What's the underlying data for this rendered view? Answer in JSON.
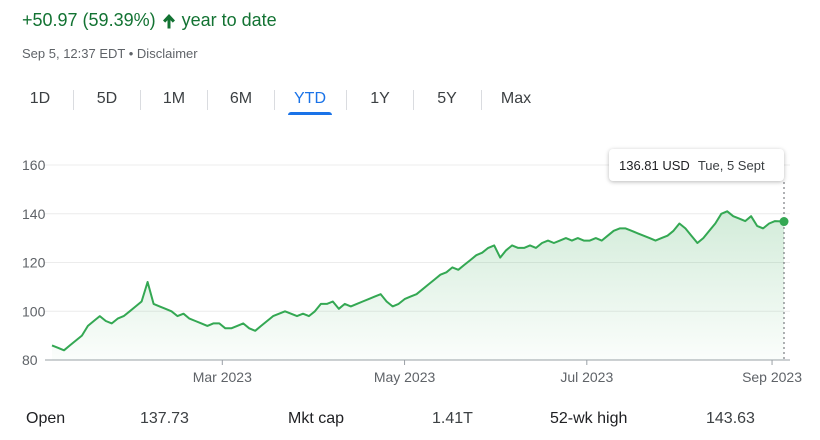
{
  "header": {
    "change_text": "+50.97 (59.39%)",
    "period_text": "year to date",
    "up_color": "#137333",
    "timestamp": "Sep 5, 12:37 EDT",
    "separator": "•",
    "disclaimer": "Disclaimer"
  },
  "range_tabs": {
    "items": [
      "1D",
      "5D",
      "1M",
      "6M",
      "YTD",
      "1Y",
      "5Y",
      "Max"
    ],
    "active": "YTD",
    "accent_color": "#1a73e8"
  },
  "tooltip": {
    "price": "136.81 USD",
    "date": "Tue, 5 Sept"
  },
  "stats": [
    {
      "label": "Open",
      "value": "137.73"
    },
    {
      "label": "Mkt cap",
      "value": "1.41T"
    },
    {
      "label": "52-wk high",
      "value": "143.63"
    }
  ],
  "chart_data": {
    "type": "area",
    "line_color": "#34a853",
    "x_tick_labels": [
      "Mar 2023",
      "May 2023",
      "Jul 2023",
      "Sep 2023"
    ],
    "y_ticks": [
      80,
      100,
      120,
      140,
      160
    ],
    "ylim": [
      80,
      160
    ],
    "grid": true,
    "x": [
      "2023-01-03",
      "2023-01-05",
      "2023-01-07",
      "2023-01-09",
      "2023-01-11",
      "2023-01-13",
      "2023-01-15",
      "2023-01-17",
      "2023-01-19",
      "2023-01-21",
      "2023-01-23",
      "2023-01-25",
      "2023-01-27",
      "2023-01-29",
      "2023-01-31",
      "2023-02-02",
      "2023-02-04",
      "2023-02-06",
      "2023-02-08",
      "2023-02-10",
      "2023-02-12",
      "2023-02-14",
      "2023-02-16",
      "2023-02-18",
      "2023-02-20",
      "2023-02-22",
      "2023-02-24",
      "2023-02-26",
      "2023-02-28",
      "2023-03-02",
      "2023-03-04",
      "2023-03-06",
      "2023-03-08",
      "2023-03-10",
      "2023-03-12",
      "2023-03-14",
      "2023-03-16",
      "2023-03-18",
      "2023-03-20",
      "2023-03-22",
      "2023-03-24",
      "2023-03-26",
      "2023-03-28",
      "2023-03-30",
      "2023-04-01",
      "2023-04-03",
      "2023-04-05",
      "2023-04-07",
      "2023-04-09",
      "2023-04-11",
      "2023-04-13",
      "2023-04-15",
      "2023-04-17",
      "2023-04-19",
      "2023-04-21",
      "2023-04-23",
      "2023-04-25",
      "2023-04-27",
      "2023-04-29",
      "2023-05-01",
      "2023-05-03",
      "2023-05-05",
      "2023-05-07",
      "2023-05-09",
      "2023-05-11",
      "2023-05-13",
      "2023-05-15",
      "2023-05-17",
      "2023-05-19",
      "2023-05-21",
      "2023-05-23",
      "2023-05-25",
      "2023-05-27",
      "2023-05-29",
      "2023-05-31",
      "2023-06-02",
      "2023-06-04",
      "2023-06-06",
      "2023-06-08",
      "2023-06-10",
      "2023-06-12",
      "2023-06-14",
      "2023-06-16",
      "2023-06-18",
      "2023-06-20",
      "2023-06-22",
      "2023-06-24",
      "2023-06-26",
      "2023-06-28",
      "2023-06-30",
      "2023-07-02",
      "2023-07-04",
      "2023-07-06",
      "2023-07-08",
      "2023-07-10",
      "2023-07-12",
      "2023-07-14",
      "2023-07-16",
      "2023-07-18",
      "2023-07-20",
      "2023-07-22",
      "2023-07-24",
      "2023-07-26",
      "2023-07-28",
      "2023-07-30",
      "2023-08-01",
      "2023-08-03",
      "2023-08-05",
      "2023-08-07",
      "2023-08-09",
      "2023-08-11",
      "2023-08-13",
      "2023-08-15",
      "2023-08-17",
      "2023-08-19",
      "2023-08-21",
      "2023-08-23",
      "2023-08-25",
      "2023-08-27",
      "2023-08-29",
      "2023-08-31",
      "2023-09-02",
      "2023-09-05"
    ],
    "series": [
      {
        "values": [
          86,
          85,
          84,
          86,
          88,
          90,
          94,
          96,
          98,
          96,
          95,
          97,
          98,
          100,
          102,
          104,
          112,
          103,
          102,
          101,
          100,
          98,
          99,
          97,
          96,
          95,
          94,
          95,
          95,
          93,
          93,
          94,
          95,
          93,
          92,
          94,
          96,
          98,
          99,
          100,
          99,
          98,
          99,
          98,
          100,
          103,
          103,
          104,
          101,
          103,
          102,
          103,
          104,
          105,
          106,
          107,
          104,
          102,
          103,
          105,
          106,
          107,
          109,
          111,
          113,
          115,
          116,
          118,
          117,
          119,
          121,
          123,
          124,
          126,
          127,
          122,
          125,
          127,
          126,
          126,
          127,
          126,
          128,
          129,
          128,
          129,
          130,
          129,
          130,
          129,
          129,
          130,
          129,
          131,
          133,
          134,
          134,
          133,
          132,
          131,
          130,
          129,
          130,
          131,
          133,
          136,
          134,
          131,
          128,
          130,
          133,
          136,
          140,
          141,
          139,
          138,
          137,
          139,
          135,
          134,
          136,
          137,
          136.81
        ]
      }
    ],
    "current_value": 136.81,
    "current_date": "2023-09-05"
  }
}
